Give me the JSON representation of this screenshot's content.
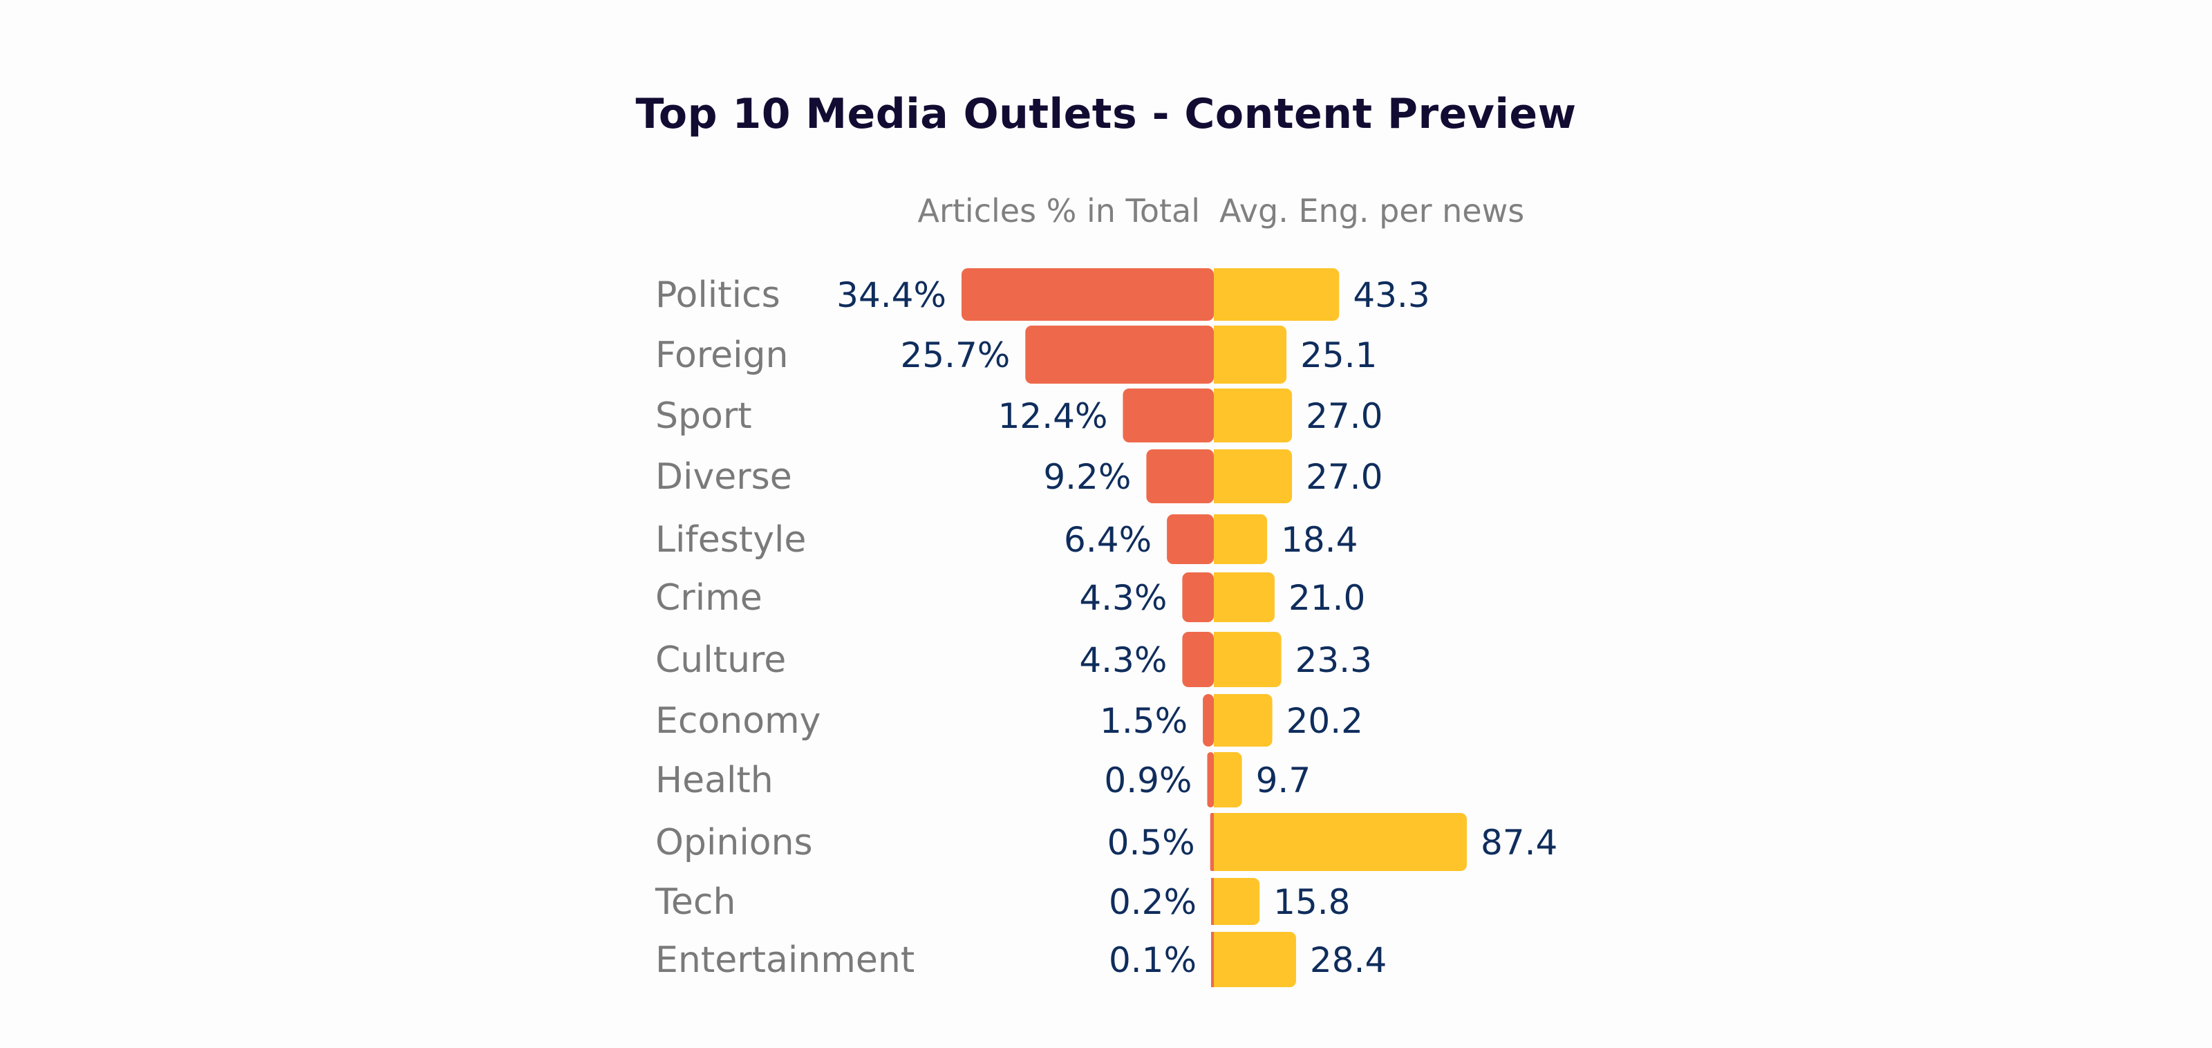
{
  "chart_data": {
    "type": "bar",
    "title": "Top 10 Media Outlets - Content Preview",
    "left_header": "Articles % in Total",
    "right_header": "Avg. Eng. per news",
    "categories": [
      "Politics",
      "Foreign",
      "Sport",
      "Diverse",
      "Lifestyle",
      "Crime",
      "Culture",
      "Economy",
      "Health",
      "Opinions",
      "Tech",
      "Entertainment"
    ],
    "series": [
      {
        "name": "Articles % in Total",
        "color": "#ee694b",
        "values": [
          34.4,
          25.7,
          12.4,
          9.2,
          6.4,
          4.3,
          4.3,
          1.5,
          0.9,
          0.5,
          0.2,
          0.1
        ],
        "labels": [
          "34.4%",
          "25.7%",
          "12.4%",
          "9.2%",
          "6.4%",
          "4.3%",
          "4.3%",
          "1.5%",
          "0.9%",
          "0.5%",
          "0.2%",
          "0.1%"
        ]
      },
      {
        "name": "Avg. Eng. per news",
        "color": "#fec42a",
        "values": [
          43.3,
          25.1,
          27.0,
          27.0,
          18.4,
          21.0,
          23.3,
          20.2,
          9.7,
          87.4,
          15.8,
          28.4
        ],
        "labels": [
          "43.3",
          "25.1",
          "27.0",
          "27.0",
          "18.4",
          "21.0",
          "23.3",
          "20.2",
          "9.7",
          "87.4",
          "15.8",
          "28.4"
        ]
      }
    ],
    "grid": false,
    "legend": "none"
  }
}
